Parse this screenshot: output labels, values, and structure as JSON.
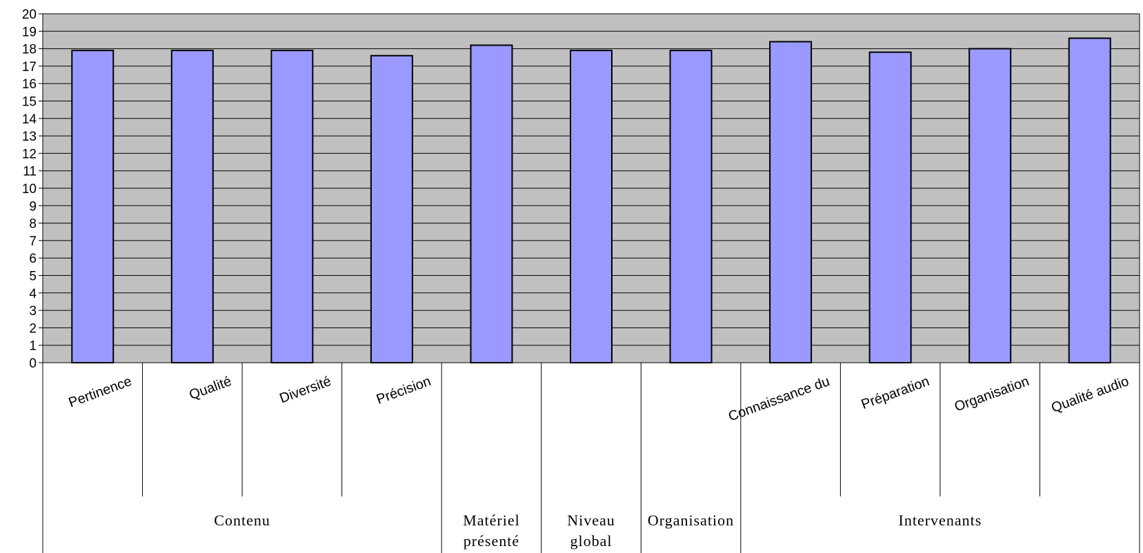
{
  "chart_data": {
    "type": "bar",
    "categories": [
      "Pertinence",
      "Qualité",
      "Diversité",
      "Précision",
      "",
      "",
      "",
      "Connaissance du",
      "Préparation",
      "Organisation",
      "Qualité audio"
    ],
    "groups": [
      {
        "label": "Contenu",
        "span": 4
      },
      {
        "label": "Matériel présenté",
        "label_lines": [
          "Matériel",
          "présenté"
        ],
        "span": 1
      },
      {
        "label": "Niveau global",
        "label_lines": [
          "Niveau",
          "global"
        ],
        "span": 1
      },
      {
        "label": "Organisation",
        "label_lines": [
          "Organisation"
        ],
        "span": 1
      },
      {
        "label": "Intervenants",
        "span": 4
      }
    ],
    "series": [
      {
        "values": [
          17.9,
          17.9,
          17.9,
          17.6,
          18.2,
          17.9,
          17.9,
          18.4,
          17.8,
          18.0,
          18.6
        ]
      }
    ],
    "ylim": [
      0,
      20
    ],
    "yticks": [
      0,
      1,
      2,
      3,
      4,
      5,
      6,
      7,
      8,
      9,
      10,
      11,
      12,
      13,
      14,
      15,
      16,
      17,
      18,
      19,
      20
    ],
    "grid": true,
    "legend": "none",
    "colors": {
      "plot_bg": "#c0c0c0",
      "bar_fill": "#9999ff",
      "bar_stroke": "#000000",
      "grid": "#000000",
      "axis": "#000000"
    }
  }
}
